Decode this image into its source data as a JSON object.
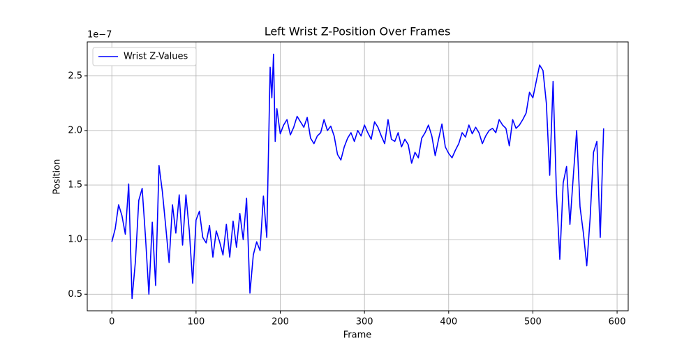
{
  "chart_data": {
    "type": "line",
    "title": "Left Wrist Z-Position Over Frames",
    "xlabel": "Frame",
    "ylabel": "Position",
    "y_offset_label": "1e−7",
    "x": [
      0,
      4,
      8,
      12,
      16,
      20,
      24,
      28,
      32,
      36,
      40,
      44,
      48,
      52,
      56,
      60,
      64,
      68,
      72,
      76,
      80,
      84,
      88,
      92,
      96,
      100,
      104,
      108,
      112,
      116,
      120,
      124,
      128,
      132,
      136,
      140,
      144,
      148,
      152,
      156,
      160,
      164,
      168,
      172,
      176,
      180,
      184,
      188,
      190,
      192,
      194,
      196,
      200,
      204,
      208,
      212,
      216,
      220,
      224,
      228,
      232,
      236,
      240,
      244,
      248,
      252,
      256,
      260,
      264,
      268,
      272,
      276,
      280,
      284,
      288,
      292,
      296,
      300,
      304,
      308,
      312,
      316,
      320,
      324,
      328,
      332,
      336,
      340,
      344,
      348,
      352,
      356,
      360,
      364,
      368,
      372,
      376,
      380,
      384,
      388,
      392,
      396,
      400,
      404,
      408,
      412,
      416,
      420,
      424,
      428,
      432,
      436,
      440,
      444,
      448,
      452,
      456,
      460,
      464,
      468,
      472,
      476,
      480,
      484,
      488,
      492,
      496,
      500,
      504,
      508,
      512,
      516,
      520,
      524,
      528,
      532,
      536,
      540,
      544,
      548,
      552,
      556,
      560,
      564,
      568,
      572,
      576,
      580,
      584
    ],
    "series": [
      {
        "name": "Wrist Z-Values",
        "color": "#0000ff",
        "values": [
          0.98,
          1.1,
          1.32,
          1.22,
          1.05,
          1.51,
          0.46,
          0.8,
          1.36,
          1.47,
          1.02,
          0.5,
          1.16,
          0.58,
          1.68,
          1.44,
          1.12,
          0.79,
          1.32,
          1.06,
          1.41,
          0.95,
          1.41,
          1.08,
          0.6,
          1.18,
          1.26,
          1.02,
          0.97,
          1.13,
          0.84,
          1.08,
          0.98,
          0.86,
          1.14,
          0.84,
          1.17,
          0.93,
          1.24,
          1.0,
          1.38,
          0.51,
          0.86,
          0.98,
          0.9,
          1.4,
          1.02,
          2.58,
          2.3,
          2.7,
          1.9,
          2.2,
          1.97,
          2.05,
          2.1,
          1.96,
          2.03,
          2.13,
          2.08,
          2.03,
          2.12,
          1.93,
          1.88,
          1.95,
          1.98,
          2.1,
          2.0,
          2.04,
          1.95,
          1.78,
          1.73,
          1.85,
          1.93,
          1.98,
          1.9,
          2.0,
          1.95,
          2.05,
          1.98,
          1.92,
          2.08,
          2.03,
          1.95,
          1.88,
          2.1,
          1.92,
          1.9,
          1.98,
          1.85,
          1.92,
          1.87,
          1.7,
          1.8,
          1.75,
          1.93,
          1.98,
          2.05,
          1.95,
          1.77,
          1.92,
          2.06,
          1.85,
          1.79,
          1.75,
          1.82,
          1.88,
          1.98,
          1.94,
          2.05,
          1.97,
          2.03,
          1.98,
          1.88,
          1.95,
          2.0,
          2.02,
          1.98,
          2.1,
          2.05,
          2.02,
          1.86,
          2.1,
          2.02,
          2.05,
          2.1,
          2.16,
          2.35,
          2.3,
          2.45,
          2.6,
          2.55,
          2.25,
          1.59,
          2.45,
          1.43,
          0.82,
          1.52,
          1.67,
          1.14,
          1.58,
          2.0,
          1.3,
          1.06,
          0.76,
          1.2,
          1.8,
          1.9,
          1.02,
          2.02
        ]
      }
    ],
    "xlim": [
      -29.2,
      613.2
    ],
    "xticks": [
      0,
      100,
      200,
      300,
      400,
      500,
      600
    ],
    "ylim": [
      0.348,
      2.812
    ],
    "yticks": [
      0.5,
      {
        "value": 1,
        "label": "1.0"
      },
      1.5,
      {
        "value": 2,
        "label": "2.0"
      },
      2.5
    ],
    "grid": true,
    "legend": "upper-left"
  }
}
